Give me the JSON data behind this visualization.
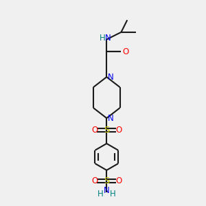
{
  "bg_color": "#f0f0f0",
  "atom_colors": {
    "C": "#000000",
    "N": "#0000ee",
    "O": "#ff0000",
    "S": "#cccc00",
    "H": "#008080"
  },
  "line_color": "#1a1a1a",
  "line_width": 1.5,
  "fs": 8.5
}
